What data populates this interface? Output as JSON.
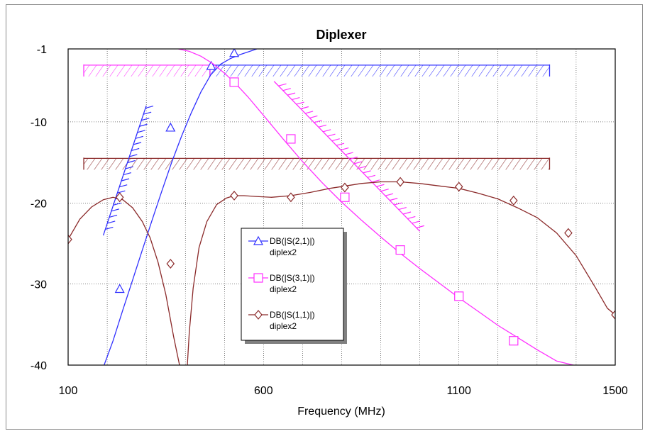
{
  "chart_data": {
    "type": "line",
    "title": "Diplexer",
    "xlabel": "Frequency (MHz)",
    "ylabel": "",
    "xlim": [
      100,
      1500
    ],
    "ylim": [
      -40,
      -1
    ],
    "x_ticks": [
      100,
      600,
      1100,
      1500
    ],
    "y_ticks": [
      -1,
      -10,
      -20,
      -30,
      -40
    ],
    "grid": true,
    "legend_position": "center",
    "series": [
      {
        "name": "DB(|S(2,1)|)",
        "sub": "diplex2",
        "color": "#3030ff",
        "marker": "triangle",
        "x": [
          192,
          215,
          240,
          265,
          290,
          315,
          340,
          365,
          390,
          415,
          440,
          465,
          490,
          515,
          540,
          565,
          583
        ],
        "y": [
          -40,
          -37,
          -33.2,
          -29.5,
          -25.8,
          -22.1,
          -18.5,
          -15,
          -11.8,
          -8.9,
          -6.3,
          -4.2,
          -2.9,
          -2.2,
          -1.7,
          -1.3,
          -1
        ],
        "marker_x": [
          232,
          362,
          466,
          525
        ],
        "marker_y": [
          -30.6,
          -10.7,
          -3.1,
          -1.5
        ]
      },
      {
        "name": "DB(|S(3,1)|)",
        "sub": "diplex2",
        "color": "#ff30ff",
        "marker": "square",
        "x": [
          382,
          410,
          440,
          470,
          500,
          525,
          560,
          600,
          650,
          700,
          750,
          800,
          850,
          900,
          950,
          1000,
          1050,
          1100,
          1150,
          1200,
          1250,
          1300,
          1350,
          1393
        ],
        "y": [
          -1,
          -1.3,
          -1.9,
          -2.8,
          -4,
          -5.1,
          -6.9,
          -9.2,
          -12.1,
          -14.9,
          -17.5,
          -19.9,
          -22.1,
          -24.2,
          -26.2,
          -28.1,
          -29.9,
          -31.7,
          -33.4,
          -35.1,
          -36.6,
          -38.1,
          -39.5,
          -40
        ],
        "marker_x": [
          525,
          670,
          808,
          950,
          1100,
          1240
        ],
        "marker_y": [
          -5.1,
          -12.1,
          -19.3,
          -25.8,
          -31.5,
          -37
        ]
      },
      {
        "name": "DB(|S(1,1)|)",
        "sub": "diplex2",
        "color": "#8b2a2a",
        "marker": "diamond",
        "x": [
          100,
          130,
          160,
          190,
          215,
          240,
          265,
          290,
          310,
          330,
          350,
          370,
          385,
          395,
          400,
          405,
          410,
          420,
          435,
          455,
          480,
          505,
          525,
          550,
          580,
          620,
          670,
          720,
          770,
          810,
          850,
          900,
          950,
          1000,
          1050,
          1100,
          1150,
          1200,
          1250,
          1300,
          1350,
          1400,
          1450,
          1480,
          1500
        ],
        "y": [
          -24.5,
          -22,
          -20.5,
          -19.6,
          -19.3,
          -19.6,
          -20.6,
          -22.3,
          -24.3,
          -27.3,
          -31.3,
          -36.5,
          -40,
          -42,
          -42,
          -40,
          -36,
          -30.5,
          -25.5,
          -22.3,
          -20.2,
          -19.4,
          -19.1,
          -19.1,
          -19.2,
          -19.3,
          -19.1,
          -18.7,
          -18.2,
          -17.9,
          -17.6,
          -17.4,
          -17.4,
          -17.6,
          -17.9,
          -18.2,
          -18.8,
          -19.5,
          -20.6,
          -21.8,
          -23.7,
          -26.5,
          -30.5,
          -33,
          -33.8
        ],
        "marker_x": [
          100,
          232,
          362,
          525,
          670,
          808,
          950,
          1100,
          1240,
          1380,
          1500
        ],
        "marker_y": [
          -24.5,
          -19.3,
          -27.5,
          -19.1,
          -19.3,
          -18.1,
          -17.4,
          -18,
          -19.7,
          -23.7,
          -33.8
        ]
      }
    ],
    "masks": [
      {
        "type": "h",
        "color": "#3030ff",
        "x1": 463,
        "x2": 1332,
        "y": -3
      },
      {
        "type": "h",
        "color": "#ff30ff",
        "x1": 140,
        "x2": 463,
        "y": -3
      },
      {
        "type": "h",
        "color": "#8b2a2a",
        "x1": 140,
        "x2": 1332,
        "y": -14.5
      },
      {
        "type": "d",
        "color": "#3030ff",
        "x1": 190,
        "y1": -24,
        "x2": 300,
        "y2": -8
      },
      {
        "type": "d",
        "color": "#ff30ff",
        "x1": 627,
        "y1": -5,
        "x2": 1000,
        "y2": -23.5
      }
    ]
  }
}
